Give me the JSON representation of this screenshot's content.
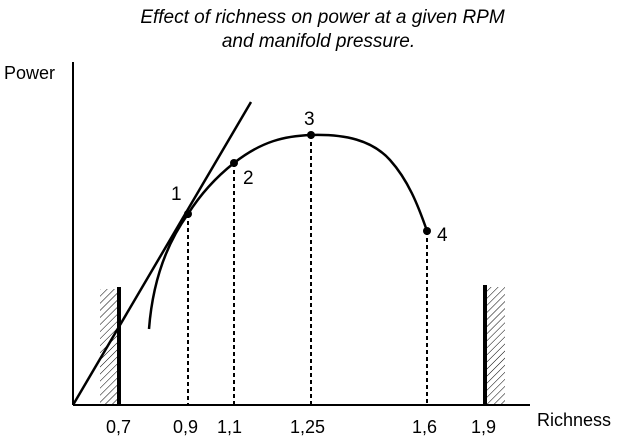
{
  "title_line1": "Effect of richness on power at a given RPM",
  "title_line2": "and manifold pressure.",
  "chart_data": {
    "type": "line",
    "title": "Effect of richness on power at a given RPM and manifold pressure.",
    "xlabel": "Richness",
    "ylabel": "Power",
    "x_ticks": [
      "0,7",
      "0,9",
      "1,1",
      "1,25",
      "1,6",
      "1,9"
    ],
    "x_tick_values": [
      0.7,
      0.9,
      1.1,
      1.25,
      1.6,
      1.9
    ],
    "series": [
      {
        "x": [
          0.8,
          0.82,
          0.86,
          0.9,
          1.0,
          1.1,
          1.25,
          1.4,
          1.5,
          1.6
        ],
        "y": [
          0.22,
          0.4,
          0.55,
          0.63,
          0.75,
          0.82,
          0.86,
          0.82,
          0.74,
          0.58
        ]
      }
    ],
    "points": [
      {
        "label": "1",
        "x": 0.9,
        "y": 0.63
      },
      {
        "label": "2",
        "x": 1.1,
        "y": 0.82
      },
      {
        "label": "3",
        "x": 1.25,
        "y": 0.86
      },
      {
        "label": "4",
        "x": 1.6,
        "y": 0.58
      }
    ],
    "tangent": {
      "x": [
        0.5,
        1.14
      ],
      "y": [
        0,
        1.0
      ]
    },
    "limits": [
      0.7,
      1.9
    ],
    "ylim": [
      0,
      1
    ],
    "xlim": [
      0.5,
      2.2
    ],
    "grid": false,
    "legend": "none"
  }
}
